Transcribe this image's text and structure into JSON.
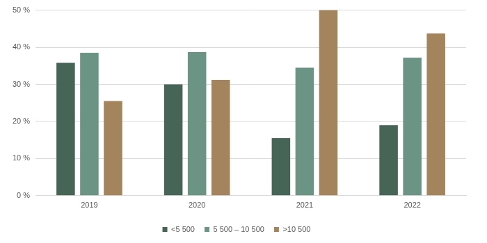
{
  "chart_data": {
    "type": "bar",
    "categories": [
      "2019",
      "2020",
      "2021",
      "2022"
    ],
    "series": [
      {
        "name": "<5 500",
        "color": "#466557",
        "values": [
          35.8,
          30.0,
          15.5,
          19.0
        ]
      },
      {
        "name": "5 500 – 10 500",
        "color": "#6b9484",
        "values": [
          38.5,
          38.7,
          34.5,
          37.2
        ]
      },
      {
        "name": ">10 500",
        "color": "#a4845d",
        "values": [
          25.5,
          31.2,
          50.0,
          43.7
        ]
      }
    ],
    "ylim": [
      0,
      50
    ],
    "yticks": [
      {
        "value": 0,
        "label": "0 %"
      },
      {
        "value": 10,
        "label": "10 %"
      },
      {
        "value": 20,
        "label": "20 %"
      },
      {
        "value": 30,
        "label": "30 %"
      },
      {
        "value": 40,
        "label": "40 %"
      },
      {
        "value": 50,
        "label": "50 %"
      }
    ],
    "grid": true,
    "legend": "bottom"
  }
}
